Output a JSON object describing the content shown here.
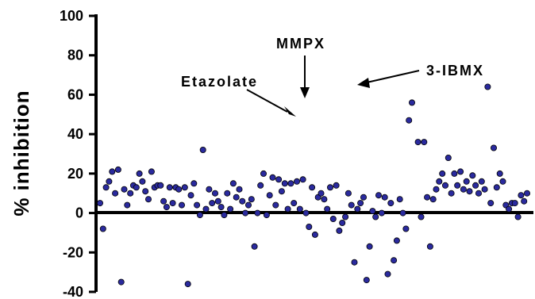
{
  "chart_data": {
    "type": "scatter",
    "title": "",
    "xlabel": "",
    "ylabel": "% inhibition",
    "ylim": [
      -40,
      100
    ],
    "yticks": [
      "100",
      "80",
      "60",
      "40",
      "20",
      "0",
      "-20",
      "-40"
    ],
    "zero_line": true,
    "grid": false,
    "legend": "none",
    "marker_color": "#2a2a9e",
    "annotations": [
      {
        "text": "MMPX",
        "x": 104,
        "y": 56
      },
      {
        "text": "Etazolate",
        "x": 103,
        "y": 47
      },
      {
        "text": "3-IBMX",
        "x": 129,
        "y": 64
      }
    ],
    "points": [
      {
        "x": 1,
        "y": 5
      },
      {
        "x": 2,
        "y": -8
      },
      {
        "x": 3,
        "y": 13
      },
      {
        "x": 4,
        "y": 16
      },
      {
        "x": 5,
        "y": 21
      },
      {
        "x": 6,
        "y": 10
      },
      {
        "x": 7,
        "y": 22
      },
      {
        "x": 8,
        "y": -35
      },
      {
        "x": 9,
        "y": 12
      },
      {
        "x": 10,
        "y": 4
      },
      {
        "x": 11,
        "y": 10
      },
      {
        "x": 12,
        "y": 14
      },
      {
        "x": 13,
        "y": 13
      },
      {
        "x": 14,
        "y": 20
      },
      {
        "x": 15,
        "y": 16
      },
      {
        "x": 16,
        "y": 11
      },
      {
        "x": 17,
        "y": 7
      },
      {
        "x": 18,
        "y": 21
      },
      {
        "x": 19,
        "y": 13
      },
      {
        "x": 20,
        "y": 14
      },
      {
        "x": 21,
        "y": 14
      },
      {
        "x": 22,
        "y": 6
      },
      {
        "x": 23,
        "y": 3
      },
      {
        "x": 24,
        "y": 13
      },
      {
        "x": 25,
        "y": 5
      },
      {
        "x": 26,
        "y": 13
      },
      {
        "x": 27,
        "y": 12
      },
      {
        "x": 28,
        "y": 4
      },
      {
        "x": 29,
        "y": 13
      },
      {
        "x": 30,
        "y": -36
      },
      {
        "x": 31,
        "y": 9
      },
      {
        "x": 32,
        "y": 15
      },
      {
        "x": 33,
        "y": 4
      },
      {
        "x": 34,
        "y": -1
      },
      {
        "x": 35,
        "y": 32
      },
      {
        "x": 36,
        "y": 2
      },
      {
        "x": 37,
        "y": 12
      },
      {
        "x": 38,
        "y": 5
      },
      {
        "x": 39,
        "y": 10
      },
      {
        "x": 40,
        "y": 6
      },
      {
        "x": 41,
        "y": 3
      },
      {
        "x": 42,
        "y": -1
      },
      {
        "x": 43,
        "y": 10
      },
      {
        "x": 44,
        "y": 2
      },
      {
        "x": 45,
        "y": 15
      },
      {
        "x": 46,
        "y": 8
      },
      {
        "x": 47,
        "y": 12
      },
      {
        "x": 48,
        "y": 6
      },
      {
        "x": 49,
        "y": 0
      },
      {
        "x": 50,
        "y": 4
      },
      {
        "x": 51,
        "y": 7
      },
      {
        "x": 52,
        "y": -17
      },
      {
        "x": 53,
        "y": 0
      },
      {
        "x": 54,
        "y": 14
      },
      {
        "x": 55,
        "y": 20
      },
      {
        "x": 56,
        "y": -1
      },
      {
        "x": 57,
        "y": 9
      },
      {
        "x": 58,
        "y": 18
      },
      {
        "x": 59,
        "y": 4
      },
      {
        "x": 60,
        "y": 17
      },
      {
        "x": 61,
        "y": 11
      },
      {
        "x": 62,
        "y": 15
      },
      {
        "x": 63,
        "y": 2
      },
      {
        "x": 64,
        "y": 15
      },
      {
        "x": 65,
        "y": 5
      },
      {
        "x": 66,
        "y": 16
      },
      {
        "x": 67,
        "y": 2
      },
      {
        "x": 68,
        "y": 17
      },
      {
        "x": 69,
        "y": 0
      },
      {
        "x": 70,
        "y": -7
      },
      {
        "x": 71,
        "y": 13
      },
      {
        "x": 72,
        "y": -11
      },
      {
        "x": 73,
        "y": 8
      },
      {
        "x": 74,
        "y": 10
      },
      {
        "x": 75,
        "y": 7
      },
      {
        "x": 76,
        "y": 2
      },
      {
        "x": 77,
        "y": 13
      },
      {
        "x": 78,
        "y": -3
      },
      {
        "x": 79,
        "y": 14
      },
      {
        "x": 80,
        "y": -9
      },
      {
        "x": 81,
        "y": -5
      },
      {
        "x": 82,
        "y": -2
      },
      {
        "x": 83,
        "y": 10
      },
      {
        "x": 84,
        "y": 4
      },
      {
        "x": 85,
        "y": -25
      },
      {
        "x": 86,
        "y": 2
      },
      {
        "x": 87,
        "y": 5
      },
      {
        "x": 88,
        "y": 8
      },
      {
        "x": 89,
        "y": -34
      },
      {
        "x": 90,
        "y": -17
      },
      {
        "x": 91,
        "y": 1
      },
      {
        "x": 92,
        "y": -2
      },
      {
        "x": 93,
        "y": 9
      },
      {
        "x": 94,
        "y": 0
      },
      {
        "x": 95,
        "y": 8
      },
      {
        "x": 96,
        "y": -31
      },
      {
        "x": 97,
        "y": 5
      },
      {
        "x": 98,
        "y": -24
      },
      {
        "x": 99,
        "y": -14
      },
      {
        "x": 100,
        "y": 7
      },
      {
        "x": 101,
        "y": 0
      },
      {
        "x": 102,
        "y": -8
      },
      {
        "x": 103,
        "y": 47
      },
      {
        "x": 104,
        "y": 56
      },
      {
        "x": 106,
        "y": 36
      },
      {
        "x": 107,
        "y": -2
      },
      {
        "x": 108,
        "y": 36
      },
      {
        "x": 109,
        "y": 8
      },
      {
        "x": 110,
        "y": -17
      },
      {
        "x": 111,
        "y": 7
      },
      {
        "x": 112,
        "y": 12
      },
      {
        "x": 113,
        "y": 16
      },
      {
        "x": 114,
        "y": 20
      },
      {
        "x": 115,
        "y": 14
      },
      {
        "x": 116,
        "y": 28
      },
      {
        "x": 117,
        "y": 10
      },
      {
        "x": 118,
        "y": 20
      },
      {
        "x": 119,
        "y": 14
      },
      {
        "x": 120,
        "y": 21
      },
      {
        "x": 121,
        "y": 12
      },
      {
        "x": 122,
        "y": 16
      },
      {
        "x": 123,
        "y": 11
      },
      {
        "x": 124,
        "y": 19
      },
      {
        "x": 125,
        "y": 14
      },
      {
        "x": 126,
        "y": 10
      },
      {
        "x": 127,
        "y": 16
      },
      {
        "x": 128,
        "y": 12
      },
      {
        "x": 129,
        "y": 64
      },
      {
        "x": 130,
        "y": 5
      },
      {
        "x": 131,
        "y": 33
      },
      {
        "x": 132,
        "y": 13
      },
      {
        "x": 133,
        "y": 20
      },
      {
        "x": 134,
        "y": 16
      },
      {
        "x": 135,
        "y": 4
      },
      {
        "x": 136,
        "y": 2
      },
      {
        "x": 137,
        "y": 5
      },
      {
        "x": 138,
        "y": 5
      },
      {
        "x": 139,
        "y": -2
      },
      {
        "x": 140,
        "y": 9
      },
      {
        "x": 141,
        "y": 6
      },
      {
        "x": 142,
        "y": 10
      }
    ]
  }
}
